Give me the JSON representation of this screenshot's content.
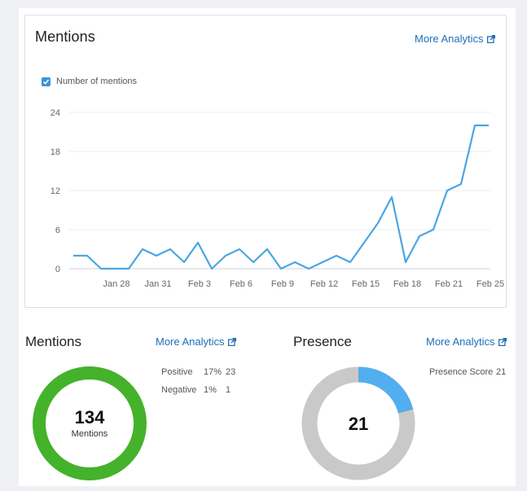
{
  "top_card": {
    "title": "Mentions",
    "more_link": "More Analytics",
    "legend_label": "Number of mentions"
  },
  "chart_data": {
    "type": "line",
    "ylim": [
      0,
      24
    ],
    "yticks": [
      "0",
      "6",
      "12",
      "18",
      "24"
    ],
    "xticks": [
      "Jan 28",
      "Jan 31",
      "Feb 3",
      "Feb 6",
      "Feb 9",
      "Feb 12",
      "Feb 15",
      "Feb 18",
      "Feb 21",
      "Feb 25"
    ],
    "series": [
      {
        "name": "Number of mentions",
        "color": "#4aa6e3",
        "values": [
          2,
          2,
          0,
          0,
          0,
          3,
          2,
          3,
          1,
          4,
          0,
          2,
          3,
          1,
          3,
          0,
          1,
          0,
          1,
          2,
          1,
          4,
          7,
          11,
          1,
          5,
          6,
          12,
          13,
          22,
          22
        ]
      }
    ],
    "x_start": "Jan 25",
    "x_end": "Feb 25",
    "grid": true
  },
  "mentions_block": {
    "title": "Mentions",
    "more_link": "More Analytics",
    "total": "134",
    "total_label": "Mentions",
    "positive_label": "Positive",
    "positive_pct": "17%",
    "positive_count": "23",
    "negative_label": "Negative",
    "negative_pct": "1%",
    "negative_count": "1",
    "donut": {
      "positive_color": "#44b22a",
      "negative_color": "#d22b1f",
      "negative_fraction": 0.04
    }
  },
  "presence_block": {
    "title": "Presence",
    "more_link": "More Analytics",
    "score_label": "Presence Score",
    "score_value": "21",
    "center_value": "21",
    "donut": {
      "fill_color": "#52aeee",
      "track_color": "#c9c9c9",
      "fraction": 0.21
    }
  },
  "icons": {
    "external_link": "external-link-icon",
    "checkbox": "checkbox-checked-icon"
  }
}
